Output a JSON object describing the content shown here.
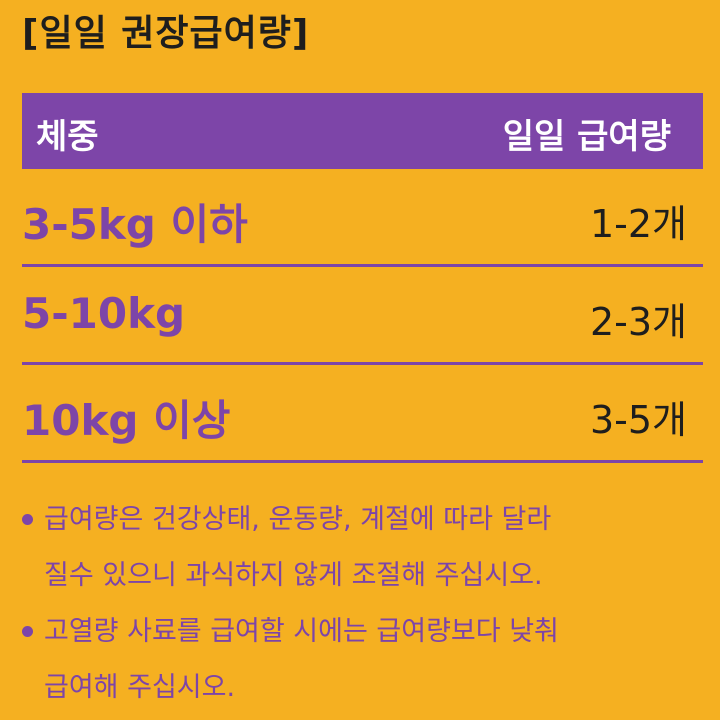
{
  "title": "[일일 권장급여량]",
  "table": {
    "header": {
      "weight": "체중",
      "amount": "일일 급여량"
    },
    "rows": [
      {
        "weight": "3-5kg 이하",
        "amount": "1-2개"
      },
      {
        "weight": "5-10kg",
        "amount": "2-3개"
      },
      {
        "weight": "10kg 이상",
        "amount": "3-5개"
      }
    ]
  },
  "notes": [
    {
      "line1": "급여량은 건강상태, 운동량, 계절에 따라 달라",
      "line2": "질수 있으니 과식하지 않게 조절해 주십시오."
    },
    {
      "line1": "고열량 사료를 급여할 시에는 급여량보다 낮춰",
      "line2": "급여해 주십시오."
    }
  ],
  "colors": {
    "background": "#f5b021",
    "accent": "#7d45a8",
    "text": "#1e1e1e"
  }
}
